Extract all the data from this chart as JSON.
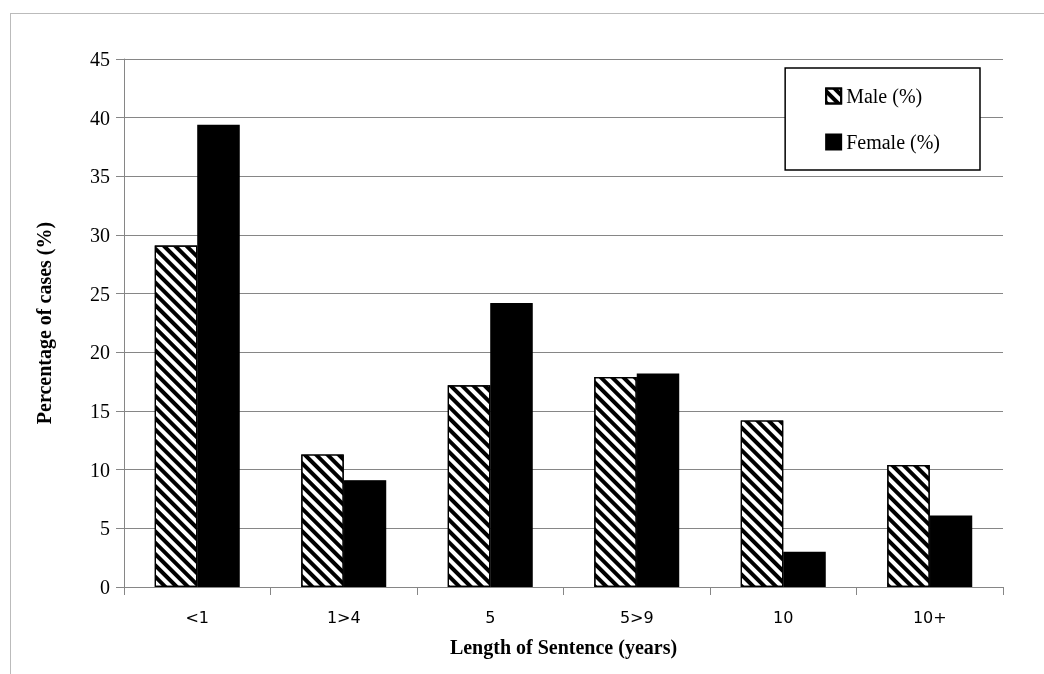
{
  "chart_data": {
    "type": "bar",
    "xlabel": "Length of Sentence (years)",
    "ylabel": "Percentage of cases (%)",
    "categories": [
      "<1",
      "1>4",
      "5",
      "5>9",
      "10",
      "10+"
    ],
    "series": [
      {
        "name": "Male (%)",
        "color": "#ffffff",
        "values": [
          29.1,
          11.3,
          17.2,
          17.9,
          14.2,
          10.4
        ]
      },
      {
        "name": "Female (%)",
        "color": "#000000",
        "values": [
          39.4,
          9.1,
          24.2,
          18.2,
          3.0,
          6.1
        ]
      }
    ],
    "ylim": [
      0,
      45
    ],
    "yticks": [
      0,
      5,
      10,
      15,
      20,
      25,
      30,
      35,
      40,
      45
    ],
    "grid": "y",
    "legend": "top right"
  }
}
